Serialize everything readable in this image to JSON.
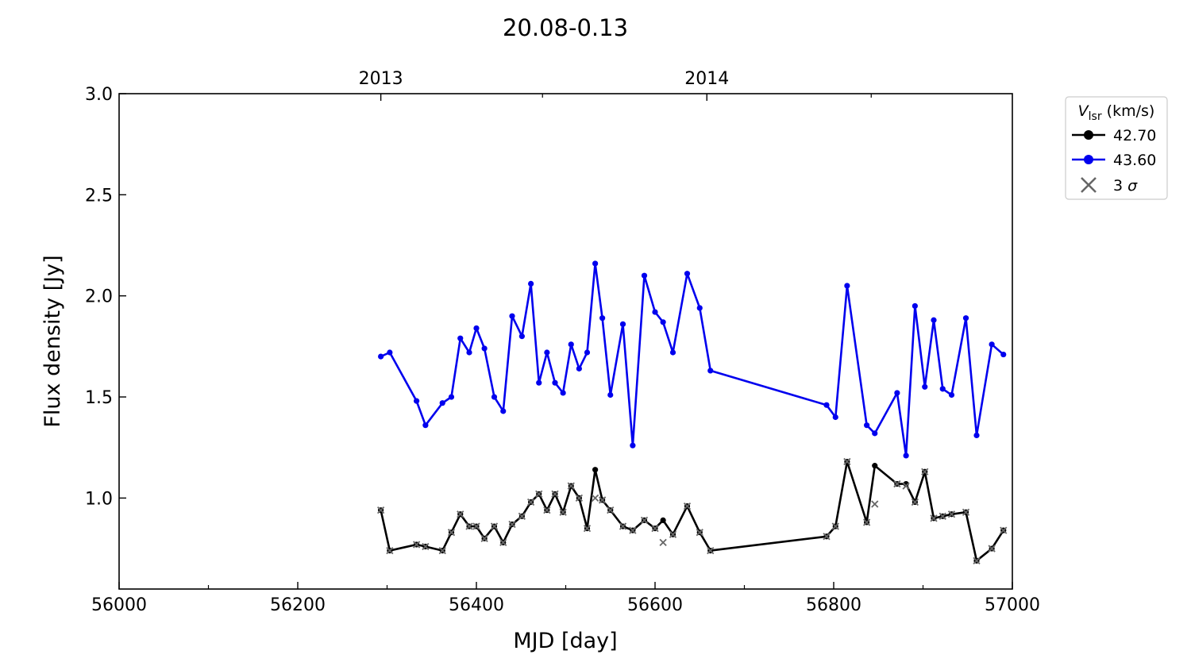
{
  "chart_data": {
    "type": "line",
    "title": "20.08-0.13",
    "xlabel": "MJD [day]",
    "ylabel": "Flux density [Jy]",
    "xlim": [
      56000,
      57000
    ],
    "ylim": [
      0.55,
      3.0
    ],
    "x_ticks": [
      56000,
      56200,
      56400,
      56600,
      56800,
      57000
    ],
    "x_ticks_minor": [
      56100,
      56300,
      56500,
      56700,
      56900
    ],
    "y_ticks": [
      1.0,
      1.5,
      2.0,
      2.5,
      3.0
    ],
    "y_tick_labels": [
      "1.0",
      "1.5",
      "2.0",
      "2.5",
      "3.0"
    ],
    "top_axis": {
      "ticks": [
        {
          "x": 56293,
          "label": "2013"
        },
        {
          "x": 56658,
          "label": "2014"
        }
      ],
      "minor_ticks": [
        56474,
        56842
      ]
    },
    "grid": false,
    "legend": {
      "title_main": "V",
      "title_sub": "lsr",
      "title_rest": " (km/s)",
      "placement": "outside-right-top",
      "sigma_label_prefix": "3 ",
      "sigma_label_symbol": "σ"
    },
    "series": [
      {
        "name": "42.70",
        "color": "#000000",
        "x": [
          56293,
          56303,
          56333,
          56343,
          56362,
          56372,
          56382,
          56392,
          56400,
          56409,
          56420,
          56430,
          56440,
          56451,
          56461,
          56470,
          56479,
          56488,
          56497,
          56506,
          56515,
          56524,
          56533,
          56541,
          56550,
          56564,
          56575,
          56588,
          56600,
          56609,
          56620,
          56636,
          56650,
          56662,
          56792,
          56802,
          56815,
          56837,
          56846,
          56871,
          56881,
          56891,
          56902,
          56912,
          56922,
          56932,
          56948,
          56960,
          56977,
          56990
        ],
        "y": [
          0.94,
          0.74,
          0.77,
          0.76,
          0.74,
          0.83,
          0.92,
          0.86,
          0.86,
          0.8,
          0.86,
          0.78,
          0.87,
          0.91,
          0.98,
          1.02,
          0.94,
          1.02,
          0.93,
          1.06,
          1.0,
          0.85,
          1.14,
          0.99,
          0.94,
          0.86,
          0.84,
          0.89,
          0.85,
          0.89,
          0.82,
          0.96,
          0.83,
          0.74,
          0.81,
          0.86,
          1.18,
          0.88,
          1.16,
          1.07,
          1.07,
          0.98,
          1.13,
          0.9,
          0.91,
          0.92,
          0.93,
          0.69,
          0.75,
          0.84
        ]
      },
      {
        "name": "43.60",
        "color": "#0000ee",
        "x": [
          56293,
          56303,
          56333,
          56343,
          56362,
          56372,
          56382,
          56392,
          56400,
          56409,
          56420,
          56430,
          56440,
          56451,
          56461,
          56470,
          56479,
          56488,
          56497,
          56506,
          56515,
          56524,
          56533,
          56541,
          56550,
          56564,
          56575,
          56588,
          56600,
          56609,
          56620,
          56636,
          56650,
          56662,
          56792,
          56802,
          56815,
          56837,
          56846,
          56871,
          56881,
          56891,
          56902,
          56912,
          56922,
          56932,
          56948,
          56960,
          56977,
          56990
        ],
        "y": [
          1.7,
          1.72,
          1.48,
          1.36,
          1.47,
          1.5,
          1.79,
          1.72,
          1.84,
          1.74,
          1.5,
          1.43,
          1.9,
          1.8,
          2.06,
          1.57,
          1.72,
          1.57,
          1.52,
          1.76,
          1.64,
          1.72,
          2.16,
          1.89,
          1.51,
          1.86,
          1.26,
          2.1,
          1.92,
          1.87,
          1.72,
          2.11,
          1.94,
          1.63,
          1.46,
          1.4,
          2.05,
          1.36,
          1.32,
          1.52,
          1.21,
          1.95,
          1.55,
          1.88,
          1.54,
          1.51,
          1.89,
          1.31,
          1.76,
          1.71
        ]
      },
      {
        "name": "3 σ",
        "color": "#666666",
        "type": "scatter",
        "marker": "x",
        "x": [
          56293,
          56303,
          56333,
          56343,
          56362,
          56372,
          56382,
          56392,
          56400,
          56409,
          56420,
          56430,
          56440,
          56451,
          56461,
          56470,
          56479,
          56488,
          56497,
          56506,
          56515,
          56524,
          56533,
          56541,
          56550,
          56564,
          56575,
          56588,
          56600,
          56609,
          56620,
          56636,
          56650,
          56662,
          56792,
          56802,
          56815,
          56837,
          56846,
          56871,
          56881,
          56891,
          56902,
          56912,
          56922,
          56932,
          56948,
          56960,
          56977,
          56990
        ],
        "y": [
          0.94,
          0.74,
          0.77,
          0.76,
          0.74,
          0.83,
          0.92,
          0.86,
          0.86,
          0.8,
          0.86,
          0.78,
          0.87,
          0.91,
          0.98,
          1.02,
          0.94,
          1.02,
          0.93,
          1.06,
          1.0,
          0.85,
          1.0,
          0.99,
          0.94,
          0.86,
          0.84,
          0.89,
          0.85,
          0.78,
          0.82,
          0.96,
          0.83,
          0.74,
          0.81,
          0.86,
          1.18,
          0.88,
          0.97,
          1.07,
          1.06,
          0.98,
          1.13,
          0.9,
          0.91,
          0.92,
          0.93,
          0.69,
          0.75,
          0.84
        ]
      }
    ]
  }
}
